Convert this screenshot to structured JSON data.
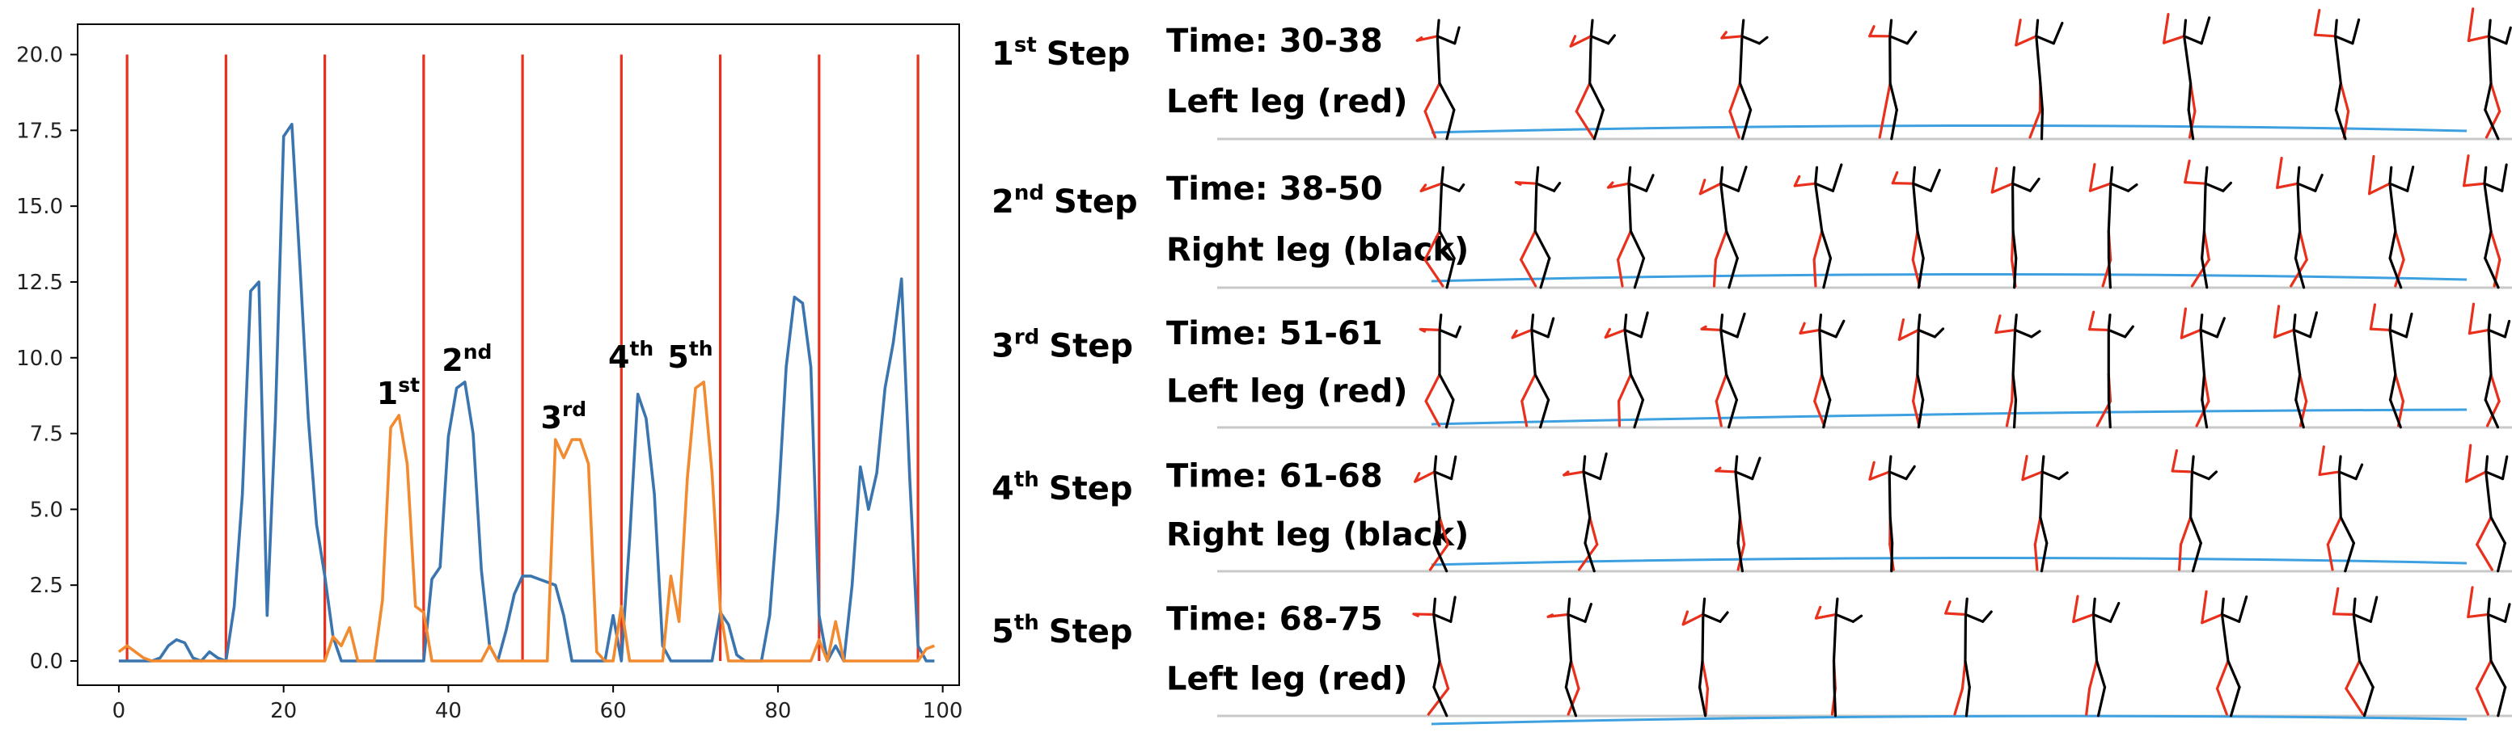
{
  "chart_data": {
    "type": "line",
    "xlim": [
      -5,
      102
    ],
    "ylim": [
      -0.8,
      21.0
    ],
    "x_ticks": [
      0,
      20,
      40,
      60,
      80,
      100
    ],
    "y_ticks": [
      0.0,
      2.5,
      5.0,
      7.5,
      10.0,
      12.5,
      15.0,
      17.5,
      20.0
    ],
    "x_tick_labels": [
      "0",
      "20",
      "40",
      "60",
      "80",
      "100"
    ],
    "y_tick_labels": [
      "0.0",
      "2.5",
      "5.0",
      "7.5",
      "10.0",
      "12.5",
      "15.0",
      "17.5",
      "20.0"
    ],
    "vertical_lines": {
      "color": "#e8301c",
      "x": [
        1,
        13,
        25,
        37,
        49,
        61,
        73,
        85,
        97
      ],
      "y_top": 20.0
    },
    "series": [
      {
        "color": "#3b75af",
        "points": [
          [
            0,
            0
          ],
          [
            1,
            0
          ],
          [
            2,
            0
          ],
          [
            3,
            0
          ],
          [
            4,
            0
          ],
          [
            5,
            0.1
          ],
          [
            6,
            0.5
          ],
          [
            7,
            0.7
          ],
          [
            8,
            0.6
          ],
          [
            9,
            0.1
          ],
          [
            10,
            0
          ],
          [
            11,
            0.3
          ],
          [
            12,
            0.1
          ],
          [
            13,
            0
          ],
          [
            14,
            1.8
          ],
          [
            15,
            5.5
          ],
          [
            16,
            12.2
          ],
          [
            17,
            12.5
          ],
          [
            18,
            1.5
          ],
          [
            19,
            8.0
          ],
          [
            20,
            17.3
          ],
          [
            21,
            17.7
          ],
          [
            22,
            13.0
          ],
          [
            23,
            8.0
          ],
          [
            24,
            4.5
          ],
          [
            25,
            2.8
          ],
          [
            26,
            0.8
          ],
          [
            27,
            0
          ],
          [
            28,
            0
          ],
          [
            29,
            0
          ],
          [
            30,
            0
          ],
          [
            31,
            0
          ],
          [
            32,
            0
          ],
          [
            33,
            0
          ],
          [
            34,
            0
          ],
          [
            35,
            0
          ],
          [
            36,
            0
          ],
          [
            37,
            0
          ],
          [
            38,
            2.7
          ],
          [
            39,
            3.1
          ],
          [
            40,
            7.4
          ],
          [
            41,
            9.0
          ],
          [
            42,
            9.2
          ],
          [
            43,
            7.5
          ],
          [
            44,
            3.0
          ],
          [
            45,
            0.5
          ],
          [
            46,
            0
          ],
          [
            47,
            1.0
          ],
          [
            48,
            2.2
          ],
          [
            49,
            2.8
          ],
          [
            50,
            2.8
          ],
          [
            51,
            2.7
          ],
          [
            52,
            2.6
          ],
          [
            53,
            2.5
          ],
          [
            54,
            1.5
          ],
          [
            55,
            0
          ],
          [
            56,
            0
          ],
          [
            57,
            0
          ],
          [
            58,
            0
          ],
          [
            59,
            0
          ],
          [
            60,
            1.5
          ],
          [
            61,
            0
          ],
          [
            62,
            4.0
          ],
          [
            63,
            8.8
          ],
          [
            64,
            8.0
          ],
          [
            65,
            5.5
          ],
          [
            66,
            0.5
          ],
          [
            67,
            0
          ],
          [
            68,
            0
          ],
          [
            69,
            0
          ],
          [
            70,
            0
          ],
          [
            71,
            0
          ],
          [
            72,
            0
          ],
          [
            73,
            1.6
          ],
          [
            74,
            1.2
          ],
          [
            75,
            0.2
          ],
          [
            76,
            0
          ],
          [
            77,
            0
          ],
          [
            78,
            0
          ],
          [
            79,
            1.5
          ],
          [
            80,
            5.0
          ],
          [
            81,
            9.7
          ],
          [
            82,
            12.0
          ],
          [
            83,
            11.8
          ],
          [
            84,
            9.7
          ],
          [
            85,
            1.5
          ],
          [
            86,
            0
          ],
          [
            87,
            0.5
          ],
          [
            88,
            0
          ],
          [
            89,
            2.5
          ],
          [
            90,
            6.4
          ],
          [
            91,
            5.0
          ],
          [
            92,
            6.2
          ],
          [
            93,
            9.0
          ],
          [
            94,
            10.5
          ],
          [
            95,
            12.6
          ],
          [
            96,
            6.0
          ],
          [
            97,
            0.5
          ],
          [
            98,
            0
          ],
          [
            99,
            0
          ]
        ]
      },
      {
        "color": "#f28a30",
        "points": [
          [
            0,
            0.3
          ],
          [
            1,
            0.5
          ],
          [
            2,
            0.3
          ],
          [
            3,
            0.1
          ],
          [
            4,
            0
          ],
          [
            5,
            0
          ],
          [
            6,
            0
          ],
          [
            7,
            0
          ],
          [
            8,
            0
          ],
          [
            9,
            0
          ],
          [
            10,
            0
          ],
          [
            11,
            0
          ],
          [
            12,
            0
          ],
          [
            13,
            0
          ],
          [
            14,
            0
          ],
          [
            15,
            0
          ],
          [
            16,
            0
          ],
          [
            17,
            0
          ],
          [
            18,
            0
          ],
          [
            19,
            0
          ],
          [
            20,
            0
          ],
          [
            21,
            0
          ],
          [
            22,
            0
          ],
          [
            23,
            0
          ],
          [
            24,
            0
          ],
          [
            25,
            0
          ],
          [
            26,
            0.8
          ],
          [
            27,
            0.5
          ],
          [
            28,
            1.1
          ],
          [
            29,
            0
          ],
          [
            30,
            0
          ],
          [
            31,
            0
          ],
          [
            32,
            2.0
          ],
          [
            33,
            7.7
          ],
          [
            34,
            8.1
          ],
          [
            35,
            6.5
          ],
          [
            36,
            1.8
          ],
          [
            37,
            1.6
          ],
          [
            38,
            0
          ],
          [
            39,
            0
          ],
          [
            40,
            0
          ],
          [
            41,
            0
          ],
          [
            42,
            0
          ],
          [
            43,
            0
          ],
          [
            44,
            0
          ],
          [
            45,
            0.5
          ],
          [
            46,
            0
          ],
          [
            47,
            0
          ],
          [
            48,
            0
          ],
          [
            49,
            0
          ],
          [
            50,
            0
          ],
          [
            51,
            0
          ],
          [
            52,
            0
          ],
          [
            53,
            7.3
          ],
          [
            54,
            6.7
          ],
          [
            55,
            7.3
          ],
          [
            56,
            7.3
          ],
          [
            57,
            6.5
          ],
          [
            58,
            0.3
          ],
          [
            59,
            0
          ],
          [
            60,
            0
          ],
          [
            61,
            1.8
          ],
          [
            62,
            0
          ],
          [
            63,
            0
          ],
          [
            64,
            0
          ],
          [
            65,
            0
          ],
          [
            66,
            0
          ],
          [
            67,
            2.8
          ],
          [
            68,
            1.3
          ],
          [
            69,
            6.0
          ],
          [
            70,
            9.0
          ],
          [
            71,
            9.2
          ],
          [
            72,
            6.2
          ],
          [
            73,
            1.7
          ],
          [
            74,
            0
          ],
          [
            75,
            0
          ],
          [
            76,
            0
          ],
          [
            77,
            0
          ],
          [
            78,
            0
          ],
          [
            79,
            0
          ],
          [
            80,
            0
          ],
          [
            81,
            0
          ],
          [
            82,
            0
          ],
          [
            83,
            0
          ],
          [
            84,
            0
          ],
          [
            85,
            0.7
          ],
          [
            86,
            0
          ],
          [
            87,
            1.3
          ],
          [
            88,
            0
          ],
          [
            89,
            0
          ],
          [
            90,
            0
          ],
          [
            91,
            0
          ],
          [
            92,
            0
          ],
          [
            93,
            0
          ],
          [
            94,
            0
          ],
          [
            95,
            0
          ],
          [
            96,
            0
          ],
          [
            97,
            0
          ],
          [
            98,
            0.4
          ],
          [
            99,
            0.5
          ]
        ]
      }
    ],
    "annotations": [
      {
        "num": "1",
        "sup": "st",
        "x": 31.3,
        "y": 8.1
      },
      {
        "num": "2",
        "sup": "nd",
        "x": 39.2,
        "y": 9.2
      },
      {
        "num": "3",
        "sup": "rd",
        "x": 51.2,
        "y": 7.3
      },
      {
        "num": "4",
        "sup": "th",
        "x": 59.4,
        "y": 9.3
      },
      {
        "num": "5",
        "sup": "th",
        "x": 66.6,
        "y": 9.3
      }
    ]
  },
  "steps": [
    {
      "num": "1",
      "sup": "st",
      "word": "Step",
      "time": "Time: 30-38",
      "leg": "Left leg (red)",
      "figures": 8
    },
    {
      "num": "2",
      "sup": "nd",
      "word": "Step",
      "time": "Time: 38-50",
      "leg": "Right leg (black)",
      "figures": 12
    },
    {
      "num": "3",
      "sup": "rd",
      "word": "Step",
      "time": "Time: 51-61",
      "leg": "Left leg (red)",
      "figures": 12
    },
    {
      "num": "4",
      "sup": "th",
      "word": "Step",
      "time": "Time: 61-68",
      "leg": "Right leg (black)",
      "figures": 8
    },
    {
      "num": "5",
      "sup": "th",
      "word": "Step",
      "time": "Time: 68-75",
      "leg": "Left leg (red)",
      "figures": 9
    }
  ],
  "colors": {
    "left_leg": "#e8301c",
    "right_leg": "#000000",
    "ground_line": "#c8c8c8",
    "trajectory": "#3da0e0"
  }
}
